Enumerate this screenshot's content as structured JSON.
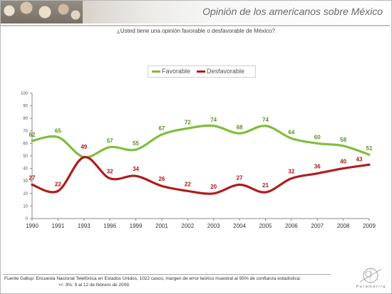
{
  "header": {
    "title": "Opinión de los americanos sobre México"
  },
  "question": "¿Usted tiene una opinión favorable o desfavorable de México?",
  "colors": {
    "favorable": "#7fbe3c",
    "desfavorable": "#b01c1c",
    "axis": "#888888",
    "label_green": "#5b8f25",
    "label_red": "#a61818"
  },
  "chart_data": {
    "type": "line",
    "x": [
      "1990",
      "1991",
      "1993",
      "1996",
      "1999",
      "2001",
      "2002",
      "2003",
      "2004",
      "2005",
      "2006",
      "2007",
      "2008",
      "2009"
    ],
    "series": [
      {
        "name": "Favorable",
        "values": [
          62,
          65,
          49,
          57,
          55,
          67,
          72,
          74,
          68,
          74,
          64,
          60,
          58,
          51
        ]
      },
      {
        "name": "Desfavorable",
        "values": [
          27,
          22,
          49,
          32,
          34,
          26,
          22,
          20,
          27,
          21,
          32,
          36,
          40,
          43
        ]
      }
    ],
    "favorable_labels": [
      "62",
      "65",
      "",
      "57",
      "55",
      "67",
      "72",
      "74",
      "68",
      "74",
      "64",
      "60",
      "58",
      "51"
    ],
    "desfavorable_labels": [
      "27",
      "22",
      "49",
      "32",
      "34",
      "26",
      "22",
      "20",
      "27",
      "21",
      "32",
      "36",
      "40",
      "43"
    ],
    "yticks": [
      "0",
      "10",
      "20",
      "30",
      "40",
      "50",
      "60",
      "70",
      "80",
      "90",
      "100"
    ],
    "ylim": [
      0,
      100
    ],
    "grid": false,
    "legend_position": "top-center"
  },
  "footer": {
    "line1": "Fuente Gallup: Encuesta Nacional Telefónica en Estados Unidos,  1022 casos, margen de error teórico muestral al 95% de confianza estadística:",
    "line2": "+/- 3%; 9 al 12 de febrero de 2009."
  },
  "logo": {
    "text": "P a r a m é t r i a"
  }
}
